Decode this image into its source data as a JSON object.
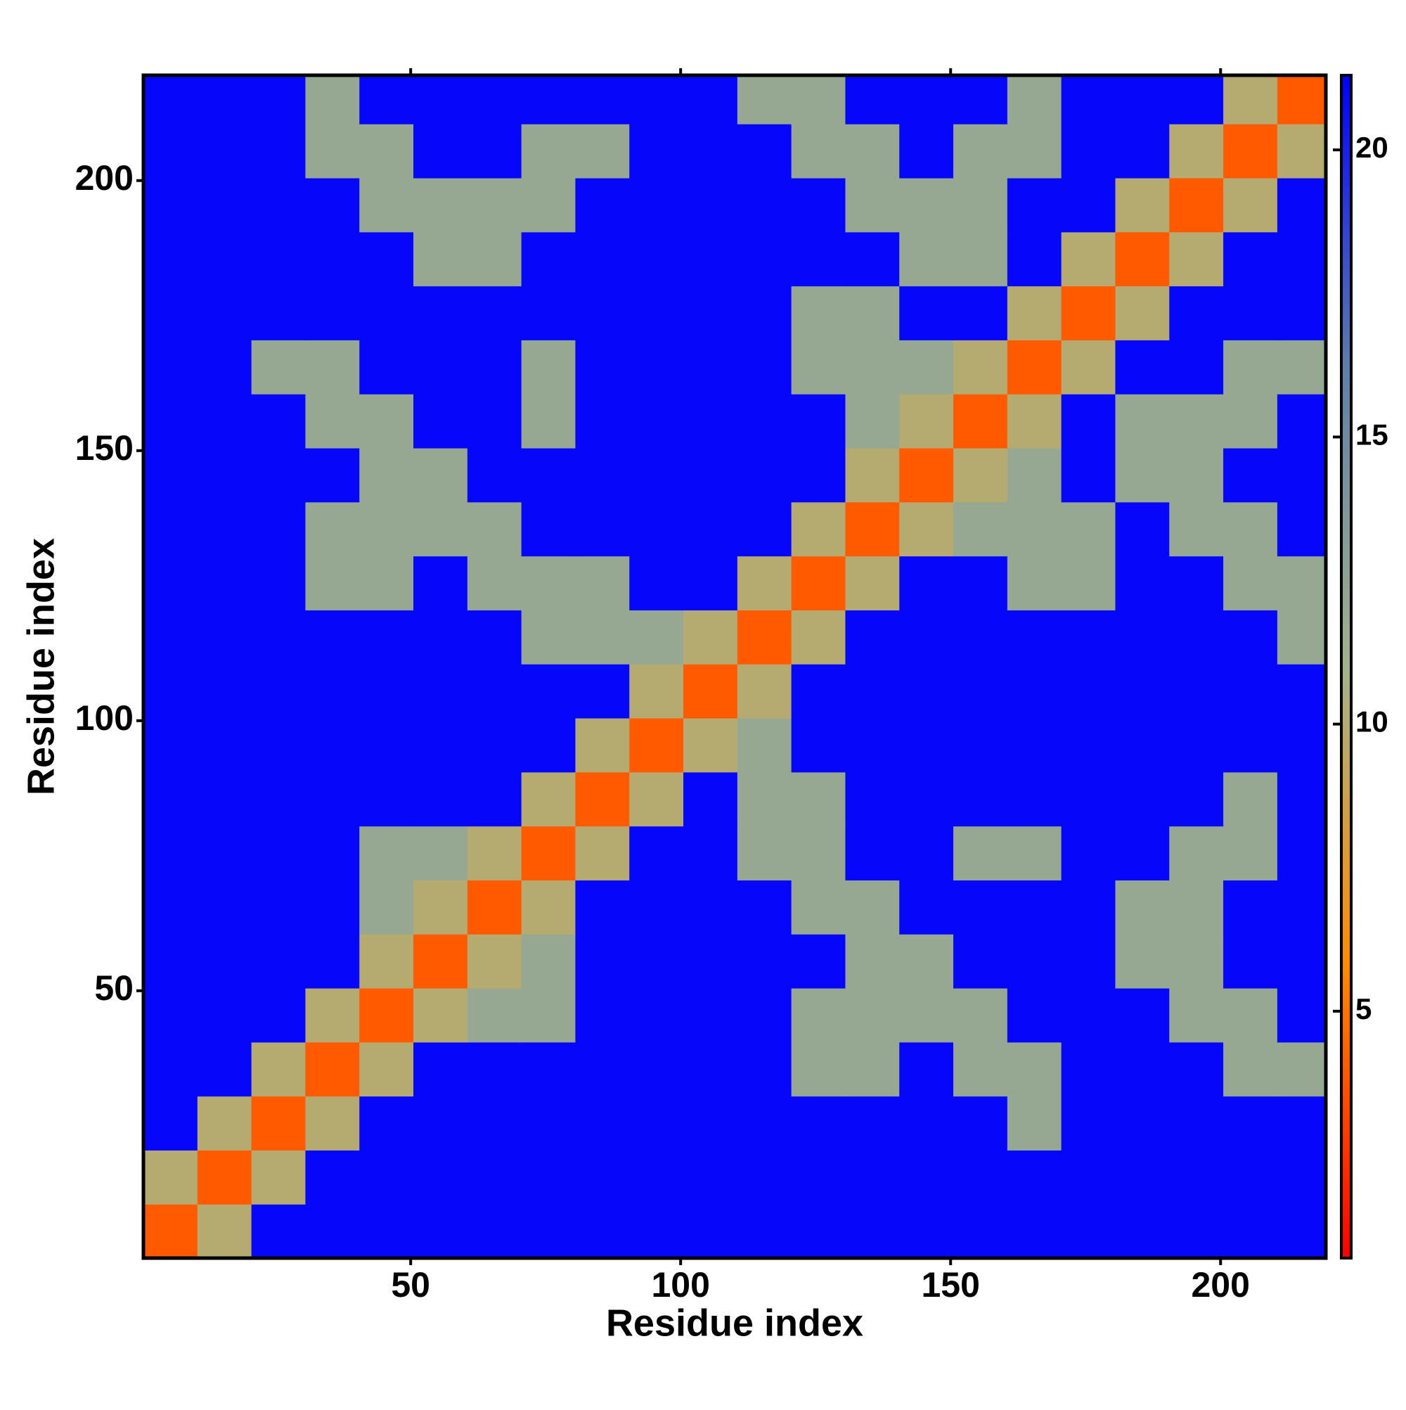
{
  "chart_data": {
    "type": "heatmap",
    "xlabel": "Residue index",
    "ylabel": "Residue index",
    "bins": [
      0.5,
      10.5,
      20.5,
      30.5,
      40.5,
      50.5,
      60.5,
      70.5,
      80.5,
      90.5,
      100.5,
      110.5,
      120.5,
      130.5,
      140.5,
      150.5,
      160.5,
      170.5,
      180.5,
      190.5,
      200.5,
      210.5,
      219.5
    ],
    "xlim": [
      0.5,
      219.5
    ],
    "ylim": [
      0.5,
      219.5
    ],
    "xticks": [
      50,
      100,
      150,
      200
    ],
    "yticks": [
      50,
      100,
      150,
      200
    ],
    "zlim": [
      0.7,
      21.3
    ],
    "zticks": [
      5,
      10,
      15,
      20
    ],
    "colorscale": [
      "#ff0000",
      "#ff8c00",
      "#a3b28c",
      "#5f7fa8",
      "#0000ff"
    ],
    "z": [
      [
        4,
        10,
        21,
        21,
        21,
        21,
        21,
        21,
        21,
        21,
        21,
        21,
        21,
        21,
        21,
        21,
        21,
        21,
        21,
        21,
        21,
        21
      ],
      [
        10,
        4,
        10,
        21,
        21,
        21,
        21,
        21,
        21,
        21,
        21,
        21,
        21,
        21,
        21,
        21,
        21,
        21,
        21,
        21,
        21,
        21
      ],
      [
        21,
        10,
        4,
        10,
        21,
        21,
        21,
        21,
        21,
        21,
        21,
        21,
        21,
        21,
        21,
        21,
        12,
        21,
        21,
        21,
        21,
        21
      ],
      [
        21,
        21,
        10,
        4,
        10,
        21,
        21,
        21,
        21,
        21,
        21,
        21,
        12,
        12,
        21,
        12,
        12,
        21,
        21,
        21,
        12,
        12
      ],
      [
        21,
        21,
        21,
        10,
        4,
        10,
        12,
        12,
        21,
        21,
        21,
        21,
        12,
        12,
        12,
        12,
        21,
        21,
        21,
        12,
        12,
        21
      ],
      [
        21,
        21,
        21,
        21,
        10,
        4,
        10,
        12,
        21,
        21,
        21,
        21,
        21,
        12,
        12,
        21,
        21,
        21,
        12,
        12,
        21,
        21
      ],
      [
        21,
        21,
        21,
        21,
        12,
        10,
        4,
        10,
        21,
        21,
        21,
        21,
        12,
        12,
        21,
        21,
        21,
        21,
        12,
        12,
        21,
        21
      ],
      [
        21,
        21,
        21,
        21,
        12,
        12,
        10,
        4,
        10,
        21,
        21,
        12,
        12,
        21,
        21,
        12,
        12,
        21,
        21,
        12,
        12,
        21
      ],
      [
        21,
        21,
        21,
        21,
        21,
        21,
        21,
        10,
        4,
        10,
        21,
        12,
        12,
        21,
        21,
        21,
        21,
        21,
        21,
        21,
        12,
        21
      ],
      [
        21,
        21,
        21,
        21,
        21,
        21,
        21,
        21,
        10,
        4,
        10,
        12,
        21,
        21,
        21,
        21,
        21,
        21,
        21,
        21,
        21,
        21
      ],
      [
        21,
        21,
        21,
        21,
        21,
        21,
        21,
        21,
        21,
        10,
        4,
        10,
        21,
        21,
        21,
        21,
        21,
        21,
        21,
        21,
        21,
        21
      ],
      [
        21,
        21,
        21,
        21,
        21,
        21,
        21,
        12,
        12,
        12,
        10,
        4,
        10,
        21,
        21,
        21,
        21,
        21,
        21,
        21,
        21,
        12
      ],
      [
        21,
        21,
        21,
        12,
        12,
        21,
        12,
        12,
        12,
        21,
        21,
        10,
        4,
        10,
        21,
        21,
        12,
        12,
        21,
        21,
        12,
        12
      ],
      [
        21,
        21,
        21,
        12,
        12,
        12,
        12,
        21,
        21,
        21,
        21,
        21,
        10,
        4,
        10,
        12,
        12,
        12,
        21,
        12,
        12,
        21
      ],
      [
        21,
        21,
        21,
        21,
        12,
        12,
        21,
        21,
        21,
        21,
        21,
        21,
        21,
        10,
        4,
        10,
        12,
        21,
        12,
        12,
        21,
        21
      ],
      [
        21,
        21,
        21,
        12,
        12,
        21,
        21,
        12,
        21,
        21,
        21,
        21,
        21,
        12,
        10,
        4,
        10,
        21,
        12,
        12,
        12,
        21
      ],
      [
        21,
        21,
        12,
        12,
        21,
        21,
        21,
        12,
        21,
        21,
        21,
        21,
        12,
        12,
        12,
        10,
        4,
        10,
        21,
        21,
        12,
        12
      ],
      [
        21,
        21,
        21,
        21,
        21,
        21,
        21,
        21,
        21,
        21,
        21,
        21,
        12,
        12,
        21,
        21,
        10,
        4,
        10,
        21,
        21,
        21
      ],
      [
        21,
        21,
        21,
        21,
        21,
        12,
        12,
        21,
        21,
        21,
        21,
        21,
        21,
        21,
        12,
        12,
        21,
        10,
        4,
        10,
        21,
        21
      ],
      [
        21,
        21,
        21,
        21,
        12,
        12,
        12,
        12,
        21,
        21,
        21,
        21,
        21,
        12,
        12,
        12,
        21,
        21,
        10,
        4,
        10,
        21
      ],
      [
        21,
        21,
        21,
        12,
        12,
        21,
        21,
        12,
        12,
        21,
        21,
        21,
        12,
        12,
        21,
        12,
        12,
        21,
        21,
        10,
        4,
        10
      ],
      [
        21,
        21,
        21,
        12,
        21,
        21,
        21,
        21,
        21,
        21,
        21,
        12,
        12,
        21,
        21,
        21,
        12,
        21,
        21,
        21,
        10,
        4
      ]
    ]
  }
}
